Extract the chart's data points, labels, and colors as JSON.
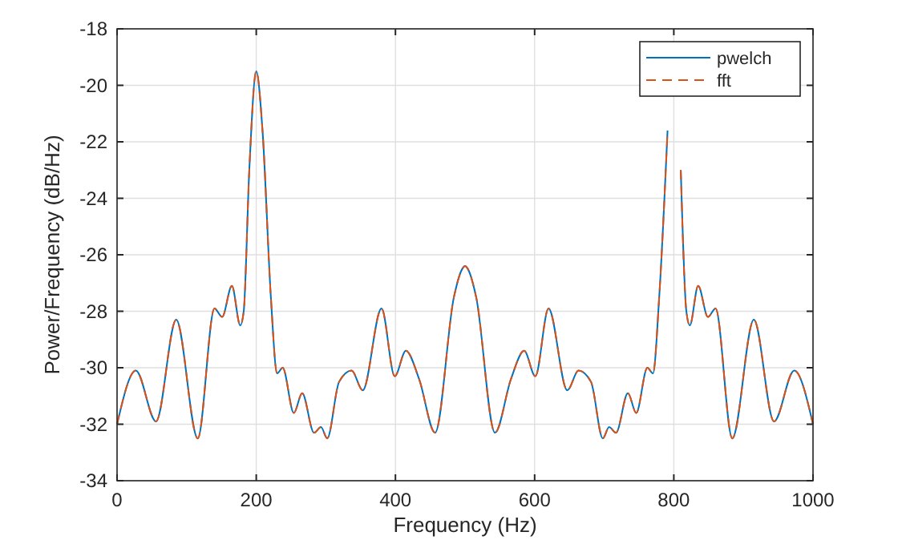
{
  "chart_data": {
    "type": "line",
    "xlabel": "Frequency (Hz)",
    "ylabel": "Power/Frequency (dB/Hz)",
    "x": [
      0,
      27,
      56,
      85,
      116,
      140,
      151,
      165,
      177,
      182,
      190,
      200,
      209,
      221,
      230,
      238,
      254,
      266,
      283,
      293,
      302,
      319,
      337,
      353,
      380,
      399,
      415,
      434,
      457,
      484,
      496,
      500,
      504,
      516,
      543,
      566,
      585,
      601,
      620,
      647,
      663,
      681,
      698,
      707,
      717,
      734,
      746,
      762,
      770,
      779,
      791,
      800,
      810,
      818,
      823,
      835,
      849,
      860,
      884,
      915,
      944,
      973,
      1000
    ],
    "series": [
      {
        "name": "pwelch",
        "color": "#0072bd",
        "line_style": "solid",
        "values": [
          -32,
          -30.1,
          -31.9,
          -28.3,
          -32.5,
          -27.9,
          -28.2,
          -27.1,
          -28.5,
          -28,
          -23,
          -19.5,
          -21.6,
          -27.5,
          -30.2,
          -30,
          -31.6,
          -30.9,
          -32.3,
          -32.1,
          -32.5,
          -30.5,
          -30.1,
          -30.8,
          -27.9,
          -30.3,
          -29.4,
          -30.4,
          -32.3,
          -27.5,
          -26.5,
          -26.4,
          -26.5,
          -27.5,
          -32.3,
          -30.4,
          -29.4,
          -30.3,
          -27.9,
          -30.8,
          -30.1,
          -30.5,
          -32.5,
          -32.1,
          -32.3,
          -30.9,
          -31.6,
          -30,
          -30.2,
          -27.5,
          -21.6,
          null,
          -23,
          -28,
          -28.5,
          -27.1,
          -28.2,
          -27.9,
          -32.5,
          -28.3,
          -31.9,
          -30.1,
          -32
        ]
      },
      {
        "name": "fft",
        "color": "#d95319",
        "line_style": "dashed",
        "values": [
          -32,
          -30.1,
          -31.9,
          -28.3,
          -32.5,
          -27.9,
          -28.2,
          -27.1,
          -28.5,
          -28,
          -23,
          -19.5,
          -21.6,
          -27.5,
          -30.2,
          -30,
          -31.6,
          -30.9,
          -32.3,
          -32.1,
          -32.5,
          -30.5,
          -30.1,
          -30.8,
          -27.9,
          -30.3,
          -29.4,
          -30.4,
          -32.3,
          -27.5,
          -26.5,
          -26.4,
          -26.5,
          -27.5,
          -32.3,
          -30.4,
          -29.4,
          -30.3,
          -27.9,
          -30.8,
          -30.1,
          -30.5,
          -32.5,
          -32.1,
          -32.3,
          -30.9,
          -31.6,
          -30,
          -30.2,
          -27.5,
          -21.6,
          null,
          -23,
          -28,
          -28.5,
          -27.1,
          -28.2,
          -27.9,
          -32.5,
          -28.3,
          -31.9,
          -30.1,
          -32
        ]
      }
    ],
    "xlim": [
      0,
      1000
    ],
    "xticks": [
      0,
      200,
      400,
      600,
      800,
      1000
    ],
    "ylim": [
      -34,
      -18
    ],
    "yticks": [
      -34,
      -32,
      -30,
      -28,
      -26,
      -24,
      -22,
      -20,
      -18
    ],
    "grid": true,
    "legend": "top right"
  }
}
